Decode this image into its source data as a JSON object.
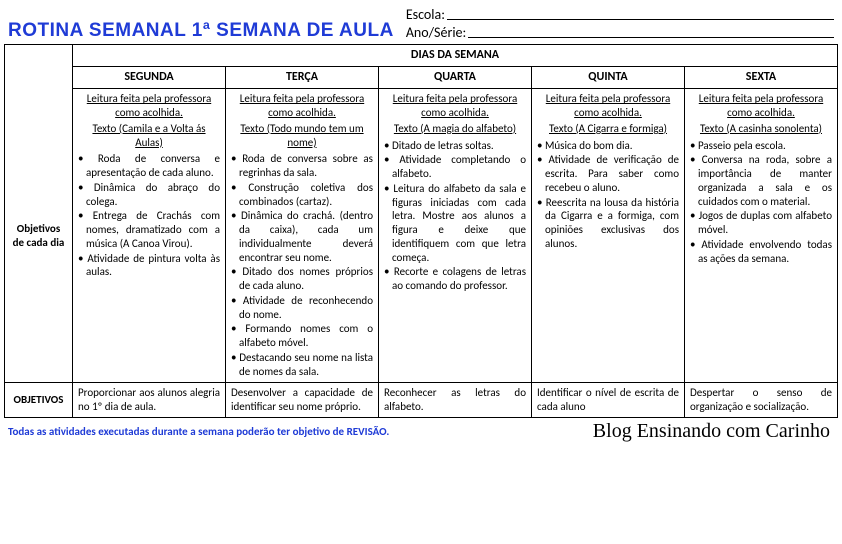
{
  "header": {
    "title": "ROTINA SEMANAL 1ª SEMANA DE AULA",
    "escola_label": "Escola:",
    "ano_label": "Ano/Série:"
  },
  "table": {
    "super_header": "DIAS DA SEMANA",
    "row1_label": "Objetivos de cada dia",
    "row2_label": "OBJETIVOS",
    "days": [
      {
        "name": "SEGUNDA",
        "intro": "Leitura feita pela professora como acolhida.",
        "text_name": "Texto (Camila e a Volta ás Aulas)",
        "bullets": [
          "Roda de conversa e apresentação de cada aluno.",
          "Dinâmica do abraço do colega.",
          "Entrega de Crachás com nomes, dramatizado com a música (A Canoa Virou).",
          "Atividade de pintura volta às aulas."
        ],
        "objective": "Proporcionar aos alunos alegria no 1º dia de aula."
      },
      {
        "name": "TERÇA",
        "intro": "Leitura feita pela professora como acolhida.",
        "text_name": "Texto (Todo mundo tem um nome)",
        "bullets": [
          "Roda de conversa sobre as regrinhas da sala.",
          "Construção coletiva dos combinados (cartaz).",
          "Dinâmica do crachá. (dentro da caixa), cada um individualmente deverá encontrar seu nome.",
          "Ditado dos nomes próprios de cada aluno.",
          "Atividade de reconhecendo do nome.",
          "Formando nomes com o alfabeto móvel.",
          "Destacando seu nome na lista de nomes da sala."
        ],
        "objective": "Desenvolver a capacidade de identificar seu nome próprio."
      },
      {
        "name": "QUARTA",
        "intro": "Leitura feita pela professora como acolhida.",
        "text_name": "Texto (A magia do alfabeto)",
        "bullets": [
          "Ditado de letras soltas.",
          "Atividade completando o alfabeto.",
          "Leitura do alfabeto da sala e figuras iniciadas com cada letra. Mostre aos alunos a figura e deixe que identifiquem com que letra começa.",
          "Recorte e colagens de letras ao comando do professor."
        ],
        "objective": "Reconhecer as letras do alfabeto."
      },
      {
        "name": "QUINTA",
        "intro": "Leitura feita pela professora como acolhida.",
        "text_name": "Texto (A Cigarra e formiga)",
        "bullets": [
          "Música do bom dia.",
          "Atividade de verificação de escrita. Para saber como recebeu o aluno.",
          "Reescrita na lousa da história da Cigarra e a formiga, com opiniões exclusivas dos alunos."
        ],
        "objective": "Identificar o nível de escrita de cada aluno"
      },
      {
        "name": "SEXTA",
        "intro": "Leitura feita pela professora como acolhida.",
        "text_name": "Texto (A casinha sonolenta)",
        "bullets": [
          "Passeio pela escola.",
          "Conversa na roda, sobre a importância de manter organizada a sala e os cuidados com o material.",
          "Jogos de duplas com alfabeto móvel.",
          "Atividade envolvendo todas as ações da semana."
        ],
        "objective": "Despertar o senso de organização e socialização."
      }
    ]
  },
  "footer": {
    "note": "Todas as atividades executadas durante a semana poderão ter objetivo de REVISÃO.",
    "blog": "Blog Ensinando com Carinho"
  }
}
